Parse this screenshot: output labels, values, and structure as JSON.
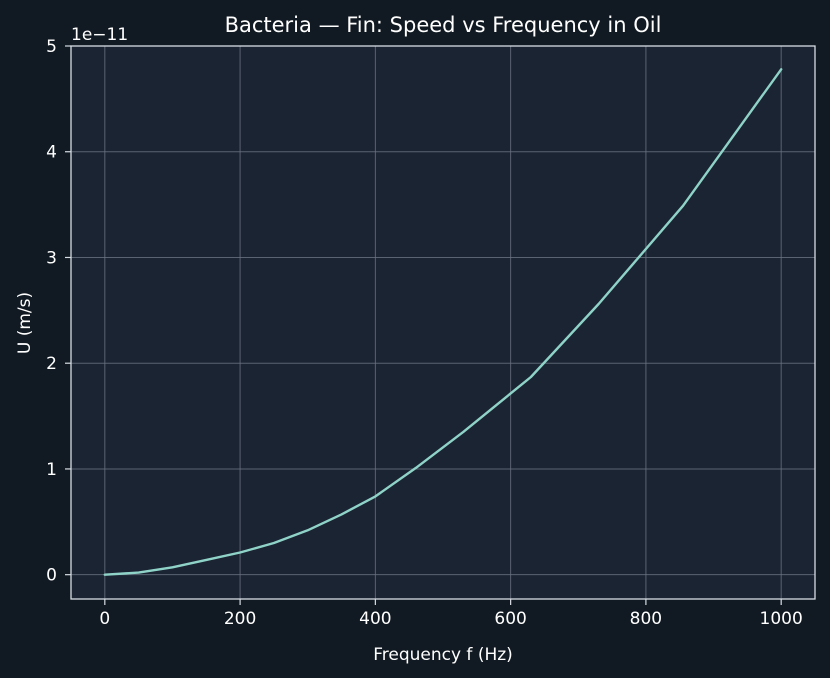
{
  "chart_data": {
    "type": "line",
    "title": "Bacteria — Fin: Speed vs Frequency in Oil",
    "xlabel": "Frequency f (Hz)",
    "ylabel": "U (m/s)",
    "y_offset_label": "1e−11",
    "y_scale_exponent": -11,
    "xlim": [
      -50,
      1050
    ],
    "ylim": [
      -0.23,
      5.0
    ],
    "x_ticks": [
      0,
      200,
      400,
      600,
      800,
      1000
    ],
    "x_tick_labels": [
      "0",
      "200",
      "400",
      "600",
      "800",
      "1000"
    ],
    "y_ticks": [
      0,
      1,
      2,
      3,
      4,
      5
    ],
    "y_tick_labels": [
      "0",
      "1",
      "2",
      "3",
      "4",
      "5"
    ],
    "grid": true,
    "series": [
      {
        "color": "#8fd3c8",
        "x": [
          0,
          50,
          100,
          150,
          200,
          250,
          300,
          350,
          400,
          460,
          530,
          630,
          730,
          855,
          1000
        ],
        "y": [
          0.0,
          0.02,
          0.07,
          0.14,
          0.21,
          0.3,
          0.42,
          0.57,
          0.74,
          1.01,
          1.35,
          1.87,
          2.56,
          3.49,
          4.78
        ]
      }
    ]
  },
  "colors": {
    "page_bg": "#111a22",
    "plot_bg": "#1b2433",
    "grid": "#6a7382",
    "axis": "#d8dde4",
    "text": "#ffffff"
  }
}
